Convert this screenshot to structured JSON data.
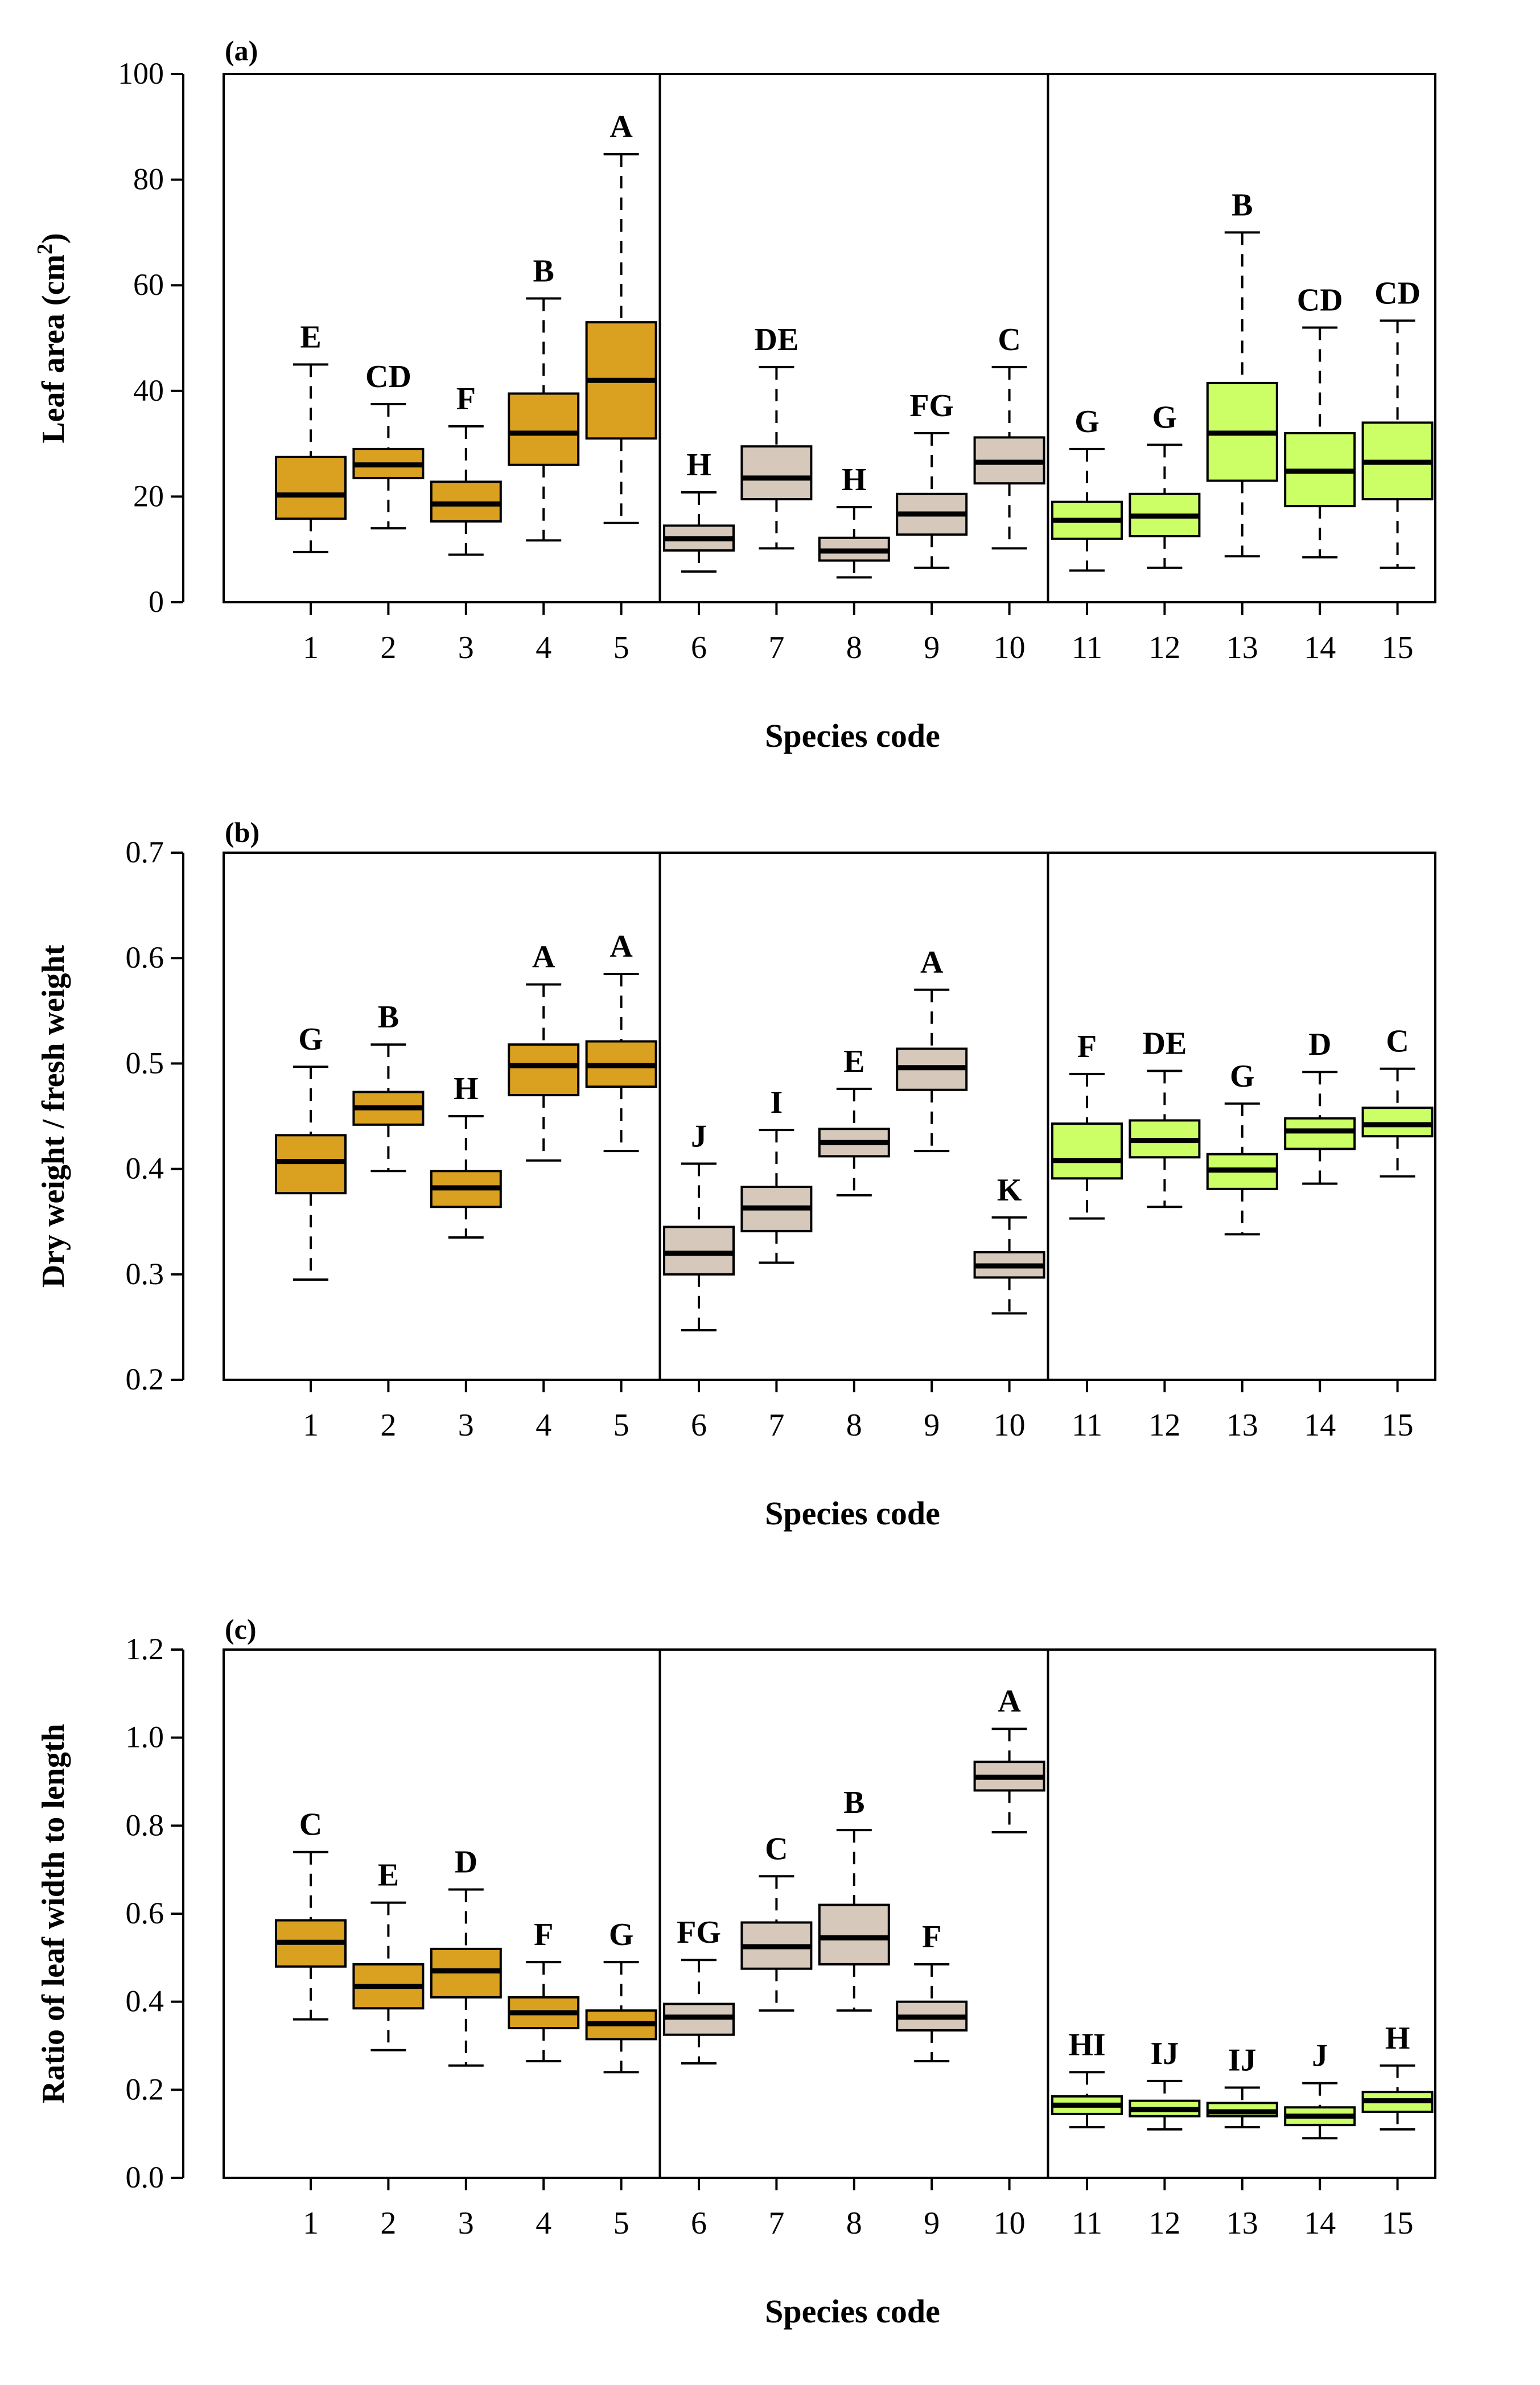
{
  "figure": {
    "panels": [
      "(a)",
      "(b)",
      "(c)"
    ]
  },
  "colors": {
    "group1": "#DAA020",
    "group2": "#D6C8BA",
    "group3": "#CCFF66",
    "stroke": "#000000"
  },
  "chart_data": [
    {
      "type": "boxplot",
      "panel_label": "(a)",
      "ylabel": "Leaf area (cm",
      "ylabel_sup": "2",
      "ylabel_close": ")",
      "xlabel": "Species code",
      "ylim": [
        0,
        100
      ],
      "yticks": [
        "0",
        "20",
        "40",
        "60",
        "80",
        "100"
      ],
      "ytick_values": [
        0,
        20,
        40,
        60,
        80,
        100
      ],
      "categories": [
        "1",
        "2",
        "3",
        "4",
        "5",
        "6",
        "7",
        "8",
        "9",
        "10",
        "11",
        "12",
        "13",
        "14",
        "15"
      ],
      "groups": [
        1,
        1,
        1,
        1,
        1,
        2,
        2,
        2,
        2,
        2,
        3,
        3,
        3,
        3,
        3
      ],
      "boxes": [
        {
          "min": 9.5,
          "q1": 15.8,
          "median": 20.3,
          "q3": 27.5,
          "max": 45.0,
          "letter": "E"
        },
        {
          "min": 14.0,
          "q1": 23.5,
          "median": 26.0,
          "q3": 29.0,
          "max": 37.5,
          "letter": "CD"
        },
        {
          "min": 9.0,
          "q1": 15.3,
          "median": 18.6,
          "q3": 22.8,
          "max": 33.3,
          "letter": "F"
        },
        {
          "min": 11.7,
          "q1": 26.0,
          "median": 32.0,
          "q3": 39.5,
          "max": 57.5,
          "letter": "B"
        },
        {
          "min": 15.0,
          "q1": 31.0,
          "median": 42.0,
          "q3": 53.0,
          "max": 84.8,
          "letter": "A"
        },
        {
          "min": 5.8,
          "q1": 9.8,
          "median": 12.0,
          "q3": 14.5,
          "max": 20.8,
          "letter": "H"
        },
        {
          "min": 10.2,
          "q1": 19.5,
          "median": 23.5,
          "q3": 29.5,
          "max": 44.5,
          "letter": "DE"
        },
        {
          "min": 4.7,
          "q1": 7.9,
          "median": 9.7,
          "q3": 12.2,
          "max": 18.0,
          "letter": "H"
        },
        {
          "min": 6.5,
          "q1": 12.8,
          "median": 16.7,
          "q3": 20.5,
          "max": 32.0,
          "letter": "FG"
        },
        {
          "min": 10.2,
          "q1": 22.5,
          "median": 26.5,
          "q3": 31.2,
          "max": 44.5,
          "letter": "C"
        },
        {
          "min": 6.0,
          "q1": 12.0,
          "median": 15.5,
          "q3": 19.0,
          "max": 29.0,
          "letter": "G"
        },
        {
          "min": 6.5,
          "q1": 12.5,
          "median": 16.3,
          "q3": 20.5,
          "max": 29.8,
          "letter": "G"
        },
        {
          "min": 8.7,
          "q1": 23.0,
          "median": 32.0,
          "q3": 41.5,
          "max": 70.0,
          "letter": "B"
        },
        {
          "min": 8.5,
          "q1": 18.2,
          "median": 24.8,
          "q3": 32.0,
          "max": 52.0,
          "letter": "CD"
        },
        {
          "min": 6.5,
          "q1": 19.5,
          "median": 26.5,
          "q3": 34.0,
          "max": 53.3,
          "letter": "CD"
        }
      ]
    },
    {
      "type": "boxplot",
      "panel_label": "(b)",
      "ylabel": "Dry weight / fresh weight",
      "ylabel_sup": "",
      "ylabel_close": "",
      "xlabel": "Species code",
      "ylim": [
        0.2,
        0.7
      ],
      "yticks": [
        "0.2",
        "0.3",
        "0.4",
        "0.5",
        "0.6",
        "0.7"
      ],
      "ytick_values": [
        0.2,
        0.3,
        0.4,
        0.5,
        0.6,
        0.7
      ],
      "categories": [
        "1",
        "2",
        "3",
        "4",
        "5",
        "6",
        "7",
        "8",
        "9",
        "10",
        "11",
        "12",
        "13",
        "14",
        "15"
      ],
      "groups": [
        1,
        1,
        1,
        1,
        1,
        2,
        2,
        2,
        2,
        2,
        3,
        3,
        3,
        3,
        3
      ],
      "boxes": [
        {
          "min": 0.295,
          "q1": 0.377,
          "median": 0.407,
          "q3": 0.432,
          "max": 0.497,
          "letter": "G"
        },
        {
          "min": 0.398,
          "q1": 0.442,
          "median": 0.458,
          "q3": 0.473,
          "max": 0.518,
          "letter": "B"
        },
        {
          "min": 0.335,
          "q1": 0.364,
          "median": 0.382,
          "q3": 0.398,
          "max": 0.45,
          "letter": "H"
        },
        {
          "min": 0.408,
          "q1": 0.47,
          "median": 0.498,
          "q3": 0.518,
          "max": 0.575,
          "letter": "A"
        },
        {
          "min": 0.417,
          "q1": 0.478,
          "median": 0.498,
          "q3": 0.521,
          "max": 0.585,
          "letter": "A"
        },
        {
          "min": 0.247,
          "q1": 0.3,
          "median": 0.32,
          "q3": 0.345,
          "max": 0.405,
          "letter": "J"
        },
        {
          "min": 0.311,
          "q1": 0.341,
          "median": 0.363,
          "q3": 0.383,
          "max": 0.437,
          "letter": "I"
        },
        {
          "min": 0.375,
          "q1": 0.412,
          "median": 0.425,
          "q3": 0.438,
          "max": 0.476,
          "letter": "E"
        },
        {
          "min": 0.417,
          "q1": 0.475,
          "median": 0.496,
          "q3": 0.514,
          "max": 0.57,
          "letter": "A"
        },
        {
          "min": 0.263,
          "q1": 0.297,
          "median": 0.308,
          "q3": 0.321,
          "max": 0.354,
          "letter": "K"
        },
        {
          "min": 0.353,
          "q1": 0.391,
          "median": 0.408,
          "q3": 0.443,
          "max": 0.49,
          "letter": "F"
        },
        {
          "min": 0.364,
          "q1": 0.411,
          "median": 0.427,
          "q3": 0.446,
          "max": 0.493,
          "letter": "DE"
        },
        {
          "min": 0.338,
          "q1": 0.381,
          "median": 0.399,
          "q3": 0.414,
          "max": 0.462,
          "letter": "G"
        },
        {
          "min": 0.386,
          "q1": 0.419,
          "median": 0.436,
          "q3": 0.448,
          "max": 0.492,
          "letter": "D"
        },
        {
          "min": 0.393,
          "q1": 0.431,
          "median": 0.442,
          "q3": 0.458,
          "max": 0.495,
          "letter": "C"
        }
      ]
    },
    {
      "type": "boxplot",
      "panel_label": "(c)",
      "ylabel": "Ratio of leaf width to length",
      "ylabel_sup": "",
      "ylabel_close": "",
      "xlabel": "Species code",
      "ylim": [
        0.0,
        1.2
      ],
      "yticks": [
        "0.0",
        "0.2",
        "0.4",
        "0.6",
        "0.8",
        "1.0",
        "1.2"
      ],
      "ytick_values": [
        0.0,
        0.2,
        0.4,
        0.6,
        0.8,
        1.0,
        1.2
      ],
      "categories": [
        "1",
        "2",
        "3",
        "4",
        "5",
        "6",
        "7",
        "8",
        "9",
        "10",
        "11",
        "12",
        "13",
        "14",
        "15"
      ],
      "groups": [
        1,
        1,
        1,
        1,
        1,
        2,
        2,
        2,
        2,
        2,
        3,
        3,
        3,
        3,
        3
      ],
      "boxes": [
        {
          "min": 0.36,
          "q1": 0.48,
          "median": 0.535,
          "q3": 0.585,
          "max": 0.74,
          "letter": "C"
        },
        {
          "min": 0.29,
          "q1": 0.385,
          "median": 0.435,
          "q3": 0.485,
          "max": 0.625,
          "letter": "E"
        },
        {
          "min": 0.255,
          "q1": 0.41,
          "median": 0.47,
          "q3": 0.52,
          "max": 0.655,
          "letter": "D"
        },
        {
          "min": 0.265,
          "q1": 0.34,
          "median": 0.375,
          "q3": 0.41,
          "max": 0.49,
          "letter": "F"
        },
        {
          "min": 0.24,
          "q1": 0.315,
          "median": 0.35,
          "q3": 0.38,
          "max": 0.49,
          "letter": "G"
        },
        {
          "min": 0.26,
          "q1": 0.325,
          "median": 0.365,
          "q3": 0.395,
          "max": 0.495,
          "letter": "FG"
        },
        {
          "min": 0.38,
          "q1": 0.475,
          "median": 0.525,
          "q3": 0.58,
          "max": 0.685,
          "letter": "C"
        },
        {
          "min": 0.38,
          "q1": 0.485,
          "median": 0.545,
          "q3": 0.62,
          "max": 0.79,
          "letter": "B"
        },
        {
          "min": 0.265,
          "q1": 0.335,
          "median": 0.365,
          "q3": 0.4,
          "max": 0.485,
          "letter": "F"
        },
        {
          "min": 0.785,
          "q1": 0.88,
          "median": 0.91,
          "q3": 0.945,
          "max": 1.02,
          "letter": "A"
        },
        {
          "min": 0.115,
          "q1": 0.145,
          "median": 0.165,
          "q3": 0.185,
          "max": 0.24,
          "letter": "HI"
        },
        {
          "min": 0.11,
          "q1": 0.14,
          "median": 0.155,
          "q3": 0.175,
          "max": 0.22,
          "letter": "IJ"
        },
        {
          "min": 0.115,
          "q1": 0.14,
          "median": 0.15,
          "q3": 0.17,
          "max": 0.205,
          "letter": "IJ"
        },
        {
          "min": 0.09,
          "q1": 0.12,
          "median": 0.14,
          "q3": 0.16,
          "max": 0.215,
          "letter": "J"
        },
        {
          "min": 0.11,
          "q1": 0.15,
          "median": 0.175,
          "q3": 0.195,
          "max": 0.255,
          "letter": "H"
        }
      ]
    }
  ]
}
